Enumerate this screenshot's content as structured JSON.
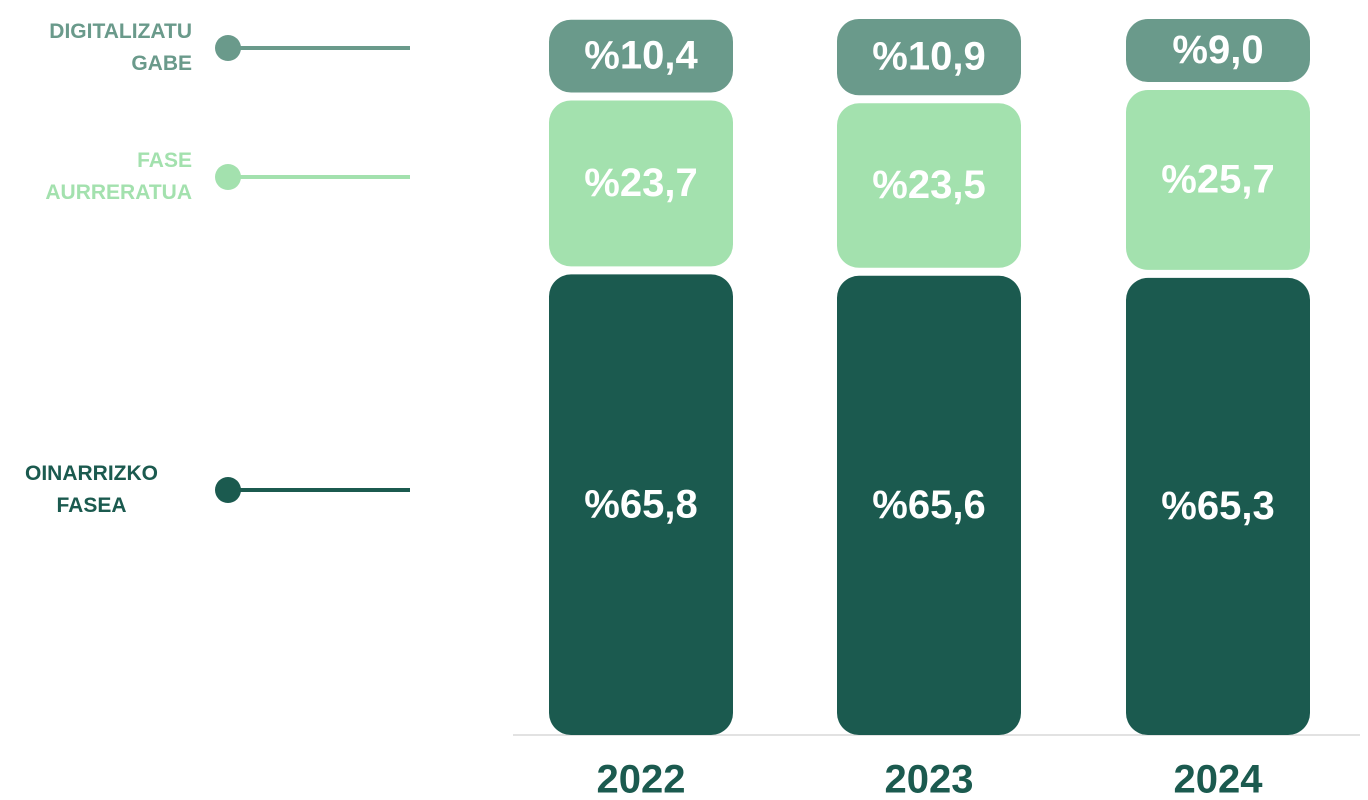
{
  "chart_data": {
    "type": "bar",
    "stacked": true,
    "categories": [
      "2022",
      "2023",
      "2024"
    ],
    "ylim": [
      0,
      100
    ],
    "series": [
      {
        "name": "OINARRIZKO FASEA",
        "color": "#1b5a4f",
        "values": [
          65.8,
          65.6,
          65.3
        ],
        "value_labels": [
          "%65,8",
          "%65,6",
          "%65,3"
        ]
      },
      {
        "name": "FASE AURRERATUA",
        "color": "#a3e1ae",
        "values": [
          23.7,
          23.5,
          25.7
        ],
        "value_labels": [
          "%23,7",
          "%23,5",
          "%25,7"
        ]
      },
      {
        "name": "DIGITALIZATU GABE",
        "color": "#6a9a8b",
        "values": [
          10.4,
          10.9,
          9.0
        ],
        "value_labels": [
          "%10,4",
          "%10,9",
          "%9,0"
        ]
      }
    ]
  }
}
